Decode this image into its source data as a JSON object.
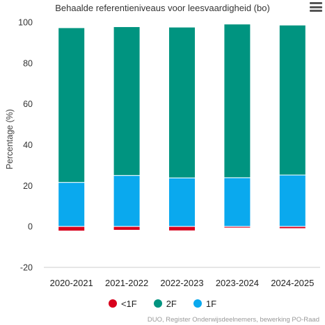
{
  "chart_data": {
    "type": "bar",
    "stacked": true,
    "title": "Behaalde referentieniveaus voor leesvaardigheid (bo)",
    "ylabel": "Percentage (%)",
    "xlabel": "",
    "ylim": [
      -20,
      100
    ],
    "yticks": [
      -20,
      0,
      20,
      40,
      60,
      80,
      100
    ],
    "grid": false,
    "legend_position": "bottom",
    "categories": [
      "2020-2021",
      "2021-2022",
      "2022-2023",
      "2023-2024",
      "2024-2025"
    ],
    "series": [
      {
        "name": "<1F",
        "color": "#d8001c",
        "values": [
          -2.2,
          -1.8,
          -2.1,
          -0.7,
          -1.0
        ]
      },
      {
        "name": "2F",
        "color": "#009480",
        "values": [
          75.7,
          72.8,
          73.8,
          75.2,
          73.4
        ]
      },
      {
        "name": "1F",
        "color": "#0aa9ee",
        "values": [
          21.6,
          25.0,
          23.8,
          23.9,
          25.2
        ]
      }
    ],
    "stack_order": [
      "1F",
      "2F"
    ],
    "credits": "DUO, Register Onderwijsdeelnemers, bewerking PO-Raad"
  },
  "menu_icon": "hamburger-menu-icon"
}
